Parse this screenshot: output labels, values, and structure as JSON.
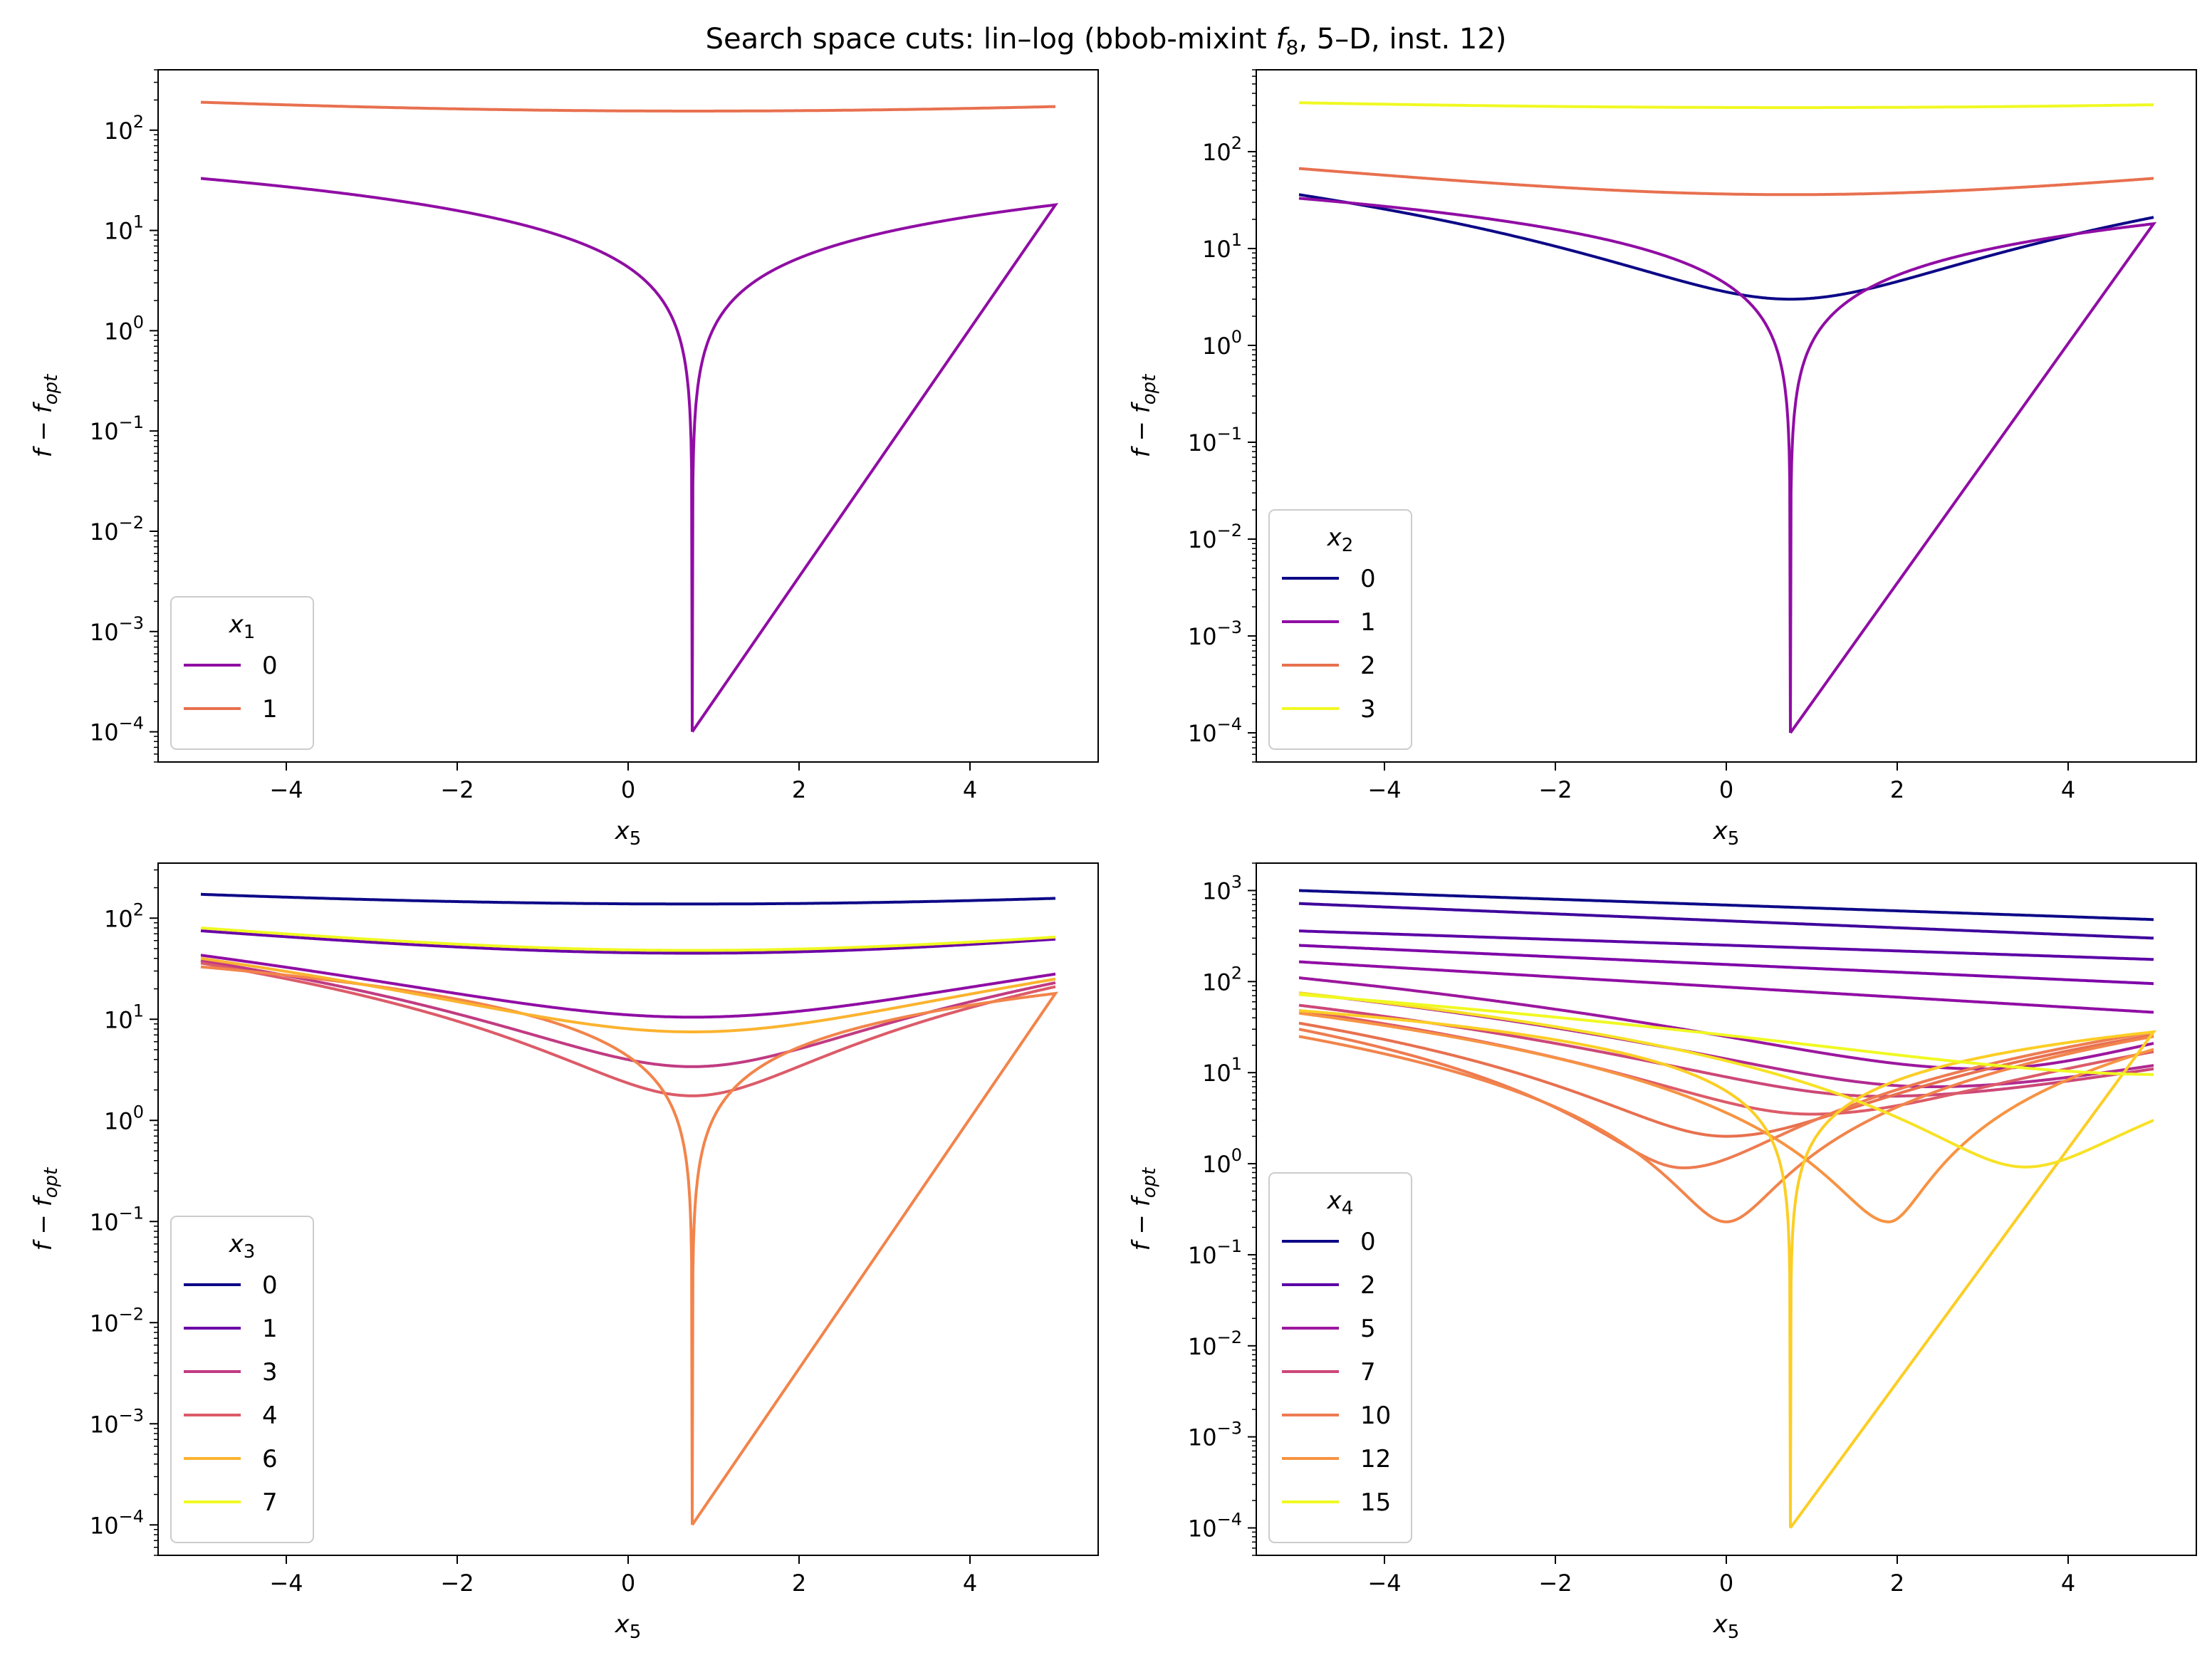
{
  "title_parts": {
    "pre": "Search space cuts: lin–log (bbob-mixint ",
    "f": "f",
    "fsub": "8",
    "post": ", 5–D, inst. 12)"
  },
  "colors": {
    "0": "#0d0887",
    "1": "#6a00a8",
    "2": "#900da4",
    "3": "#b12a90",
    "4": "#cc4778",
    "5": "#e16462",
    "6": "#f2844b",
    "7": "#fca636",
    "8": "#fcce25",
    "9": "#f0f921"
  },
  "chart_data": [
    {
      "type": "line",
      "xlabel": {
        "base": "x",
        "sub": "5"
      },
      "ylabel": {
        "base": "f − f",
        "sub": "opt"
      },
      "yscale": "log",
      "xlim": [
        -5.5,
        5.5
      ],
      "ylim": [
        5e-05,
        400
      ],
      "xticks": [
        -4,
        -2,
        0,
        2,
        4
      ],
      "yticks": [
        0.0001,
        0.001,
        0.01,
        0.1,
        1,
        10,
        100
      ],
      "legend": {
        "title": {
          "base": "x",
          "sub": "1"
        },
        "position": "lower-left"
      },
      "series": [
        {
          "name": "0",
          "color": "#900da4",
          "kind": "sqrt",
          "x0": 0.75,
          "floor": 0.0001,
          "left": 33,
          "right": 18
        },
        {
          "name": "1",
          "color": "#e8704f",
          "kind": "bowl",
          "x0": 0.75,
          "min": 155,
          "left": 190,
          "right": 172
        }
      ]
    },
    {
      "type": "line",
      "xlabel": {
        "base": "x",
        "sub": "5"
      },
      "ylabel": {
        "base": "f − f",
        "sub": "opt"
      },
      "yscale": "log",
      "xlim": [
        -5.5,
        5.5
      ],
      "ylim": [
        5e-05,
        700
      ],
      "xticks": [
        -4,
        -2,
        0,
        2,
        4
      ],
      "yticks": [
        0.0001,
        0.001,
        0.01,
        0.1,
        1,
        10,
        100
      ],
      "legend": {
        "title": {
          "base": "x",
          "sub": "2"
        },
        "position": "lower-left"
      },
      "series": [
        {
          "name": "0",
          "color": "#0d0887",
          "kind": "bowl",
          "x0": 0.75,
          "min": 3,
          "left": 36,
          "right": 21
        },
        {
          "name": "1",
          "color": "#900da4",
          "kind": "sqrt",
          "x0": 0.75,
          "floor": 0.0001,
          "left": 33,
          "right": 18
        },
        {
          "name": "2",
          "color": "#e8704f",
          "kind": "bowl",
          "x0": 0.75,
          "min": 36,
          "left": 67,
          "right": 53
        },
        {
          "name": "3",
          "color": "#f0f921",
          "kind": "bowl",
          "x0": 0.75,
          "min": 285,
          "left": 320,
          "right": 305
        }
      ]
    },
    {
      "type": "line",
      "xlabel": {
        "base": "x",
        "sub": "5"
      },
      "ylabel": {
        "base": "f − f",
        "sub": "opt"
      },
      "yscale": "log",
      "xlim": [
        -5.5,
        5.5
      ],
      "ylim": [
        5e-05,
        350
      ],
      "xticks": [
        -4,
        -2,
        0,
        2,
        4
      ],
      "yticks": [
        0.0001,
        0.001,
        0.01,
        0.1,
        1,
        10,
        100
      ],
      "legend": {
        "title": {
          "base": "x",
          "sub": "3"
        },
        "position": "lower-left"
      },
      "series": [
        {
          "name": "0",
          "color": "#0d0887",
          "kind": "bowl",
          "x0": 0.75,
          "min": 138,
          "left": 172,
          "right": 157
        },
        {
          "name": "1",
          "color": "#6a00a8",
          "kind": "bowl",
          "x0": 0.75,
          "min": 45,
          "left": 75,
          "right": 62
        },
        {
          "name": "",
          "color": "#900da4",
          "kind": "bowl",
          "x0": 0.75,
          "min": 10.5,
          "left": 43,
          "right": 28
        },
        {
          "name": "3",
          "color": "#c13b82",
          "kind": "bowl",
          "x0": 0.75,
          "min": 3.4,
          "left": 38,
          "right": 23
        },
        {
          "name": "4",
          "color": "#dc5b69",
          "kind": "bowl",
          "x0": 0.75,
          "min": 1.75,
          "left": 36,
          "right": 21
        },
        {
          "name": "",
          "color": "#f2844b",
          "kind": "sqrt",
          "x0": 0.75,
          "floor": 0.0001,
          "left": 33,
          "right": 18
        },
        {
          "name": "6",
          "color": "#fbb32f",
          "kind": "bowl",
          "x0": 0.75,
          "min": 7.5,
          "left": 40,
          "right": 25
        },
        {
          "name": "7",
          "color": "#f0f921",
          "kind": "bowl",
          "x0": 0.75,
          "min": 48,
          "left": 80,
          "right": 65
        }
      ]
    },
    {
      "type": "line",
      "xlabel": {
        "base": "x",
        "sub": "5"
      },
      "ylabel": {
        "base": "f − f",
        "sub": "opt"
      },
      "yscale": "log",
      "xlim": [
        -5.5,
        5.5
      ],
      "ylim": [
        5e-05,
        2000
      ],
      "xticks": [
        -4,
        -2,
        0,
        2,
        4
      ],
      "yticks": [
        0.0001,
        0.001,
        0.01,
        0.1,
        1,
        10,
        100,
        1000
      ],
      "legend": {
        "title": {
          "base": "x",
          "sub": "4"
        },
        "position": "lower-left"
      },
      "series": [
        {
          "name": "0",
          "color": "#0d0887",
          "kind": "mono",
          "left": 1000,
          "right": 480
        },
        {
          "name": "",
          "color": "#3e049c",
          "kind": "mono",
          "left": 720,
          "right": 300
        },
        {
          "name": "2",
          "color": "#5c01a6",
          "kind": "mono",
          "left": 360,
          "right": 175
        },
        {
          "name": "",
          "color": "#7e03a8",
          "kind": "mono",
          "left": 250,
          "right": 95
        },
        {
          "name": "",
          "color": "#900da4",
          "kind": "mono",
          "left": 165,
          "right": 46
        },
        {
          "name": "5",
          "color": "#9c179e",
          "kind": "bowl",
          "x0": 3.0,
          "min": 11,
          "left": 110,
          "right": 21
        },
        {
          "name": "",
          "color": "#b12a90",
          "kind": "bowl",
          "x0": 2.4,
          "min": 7,
          "left": 75,
          "right": 12
        },
        {
          "name": "7",
          "color": "#cc4778",
          "kind": "bowl",
          "x0": 1.8,
          "min": 5.5,
          "left": 55,
          "right": 11
        },
        {
          "name": "",
          "color": "#dc5b69",
          "kind": "bowl",
          "x0": 1.0,
          "min": 3.5,
          "left": 48,
          "right": 17
        },
        {
          "name": "",
          "color": "#e8704f",
          "kind": "bowl",
          "x0": 0.0,
          "min": 2.0,
          "left": 35,
          "right": 26
        },
        {
          "name": "10",
          "color": "#ee7b51",
          "kind": "bowl",
          "x0": -0.5,
          "min": 0.9,
          "left": 30,
          "right": 28
        },
        {
          "name": "",
          "color": "#f2844b",
          "kind": "bowl",
          "x0": 0.0,
          "min": 0.23,
          "left": 25,
          "right": 25
        },
        {
          "name": "12",
          "color": "#f79342",
          "kind": "bowl",
          "x0": 1.9,
          "min": 0.23,
          "left": 45,
          "right": 18
        },
        {
          "name": "",
          "color": "#fcce25",
          "kind": "sqrt",
          "x0": 0.75,
          "floor": 0.0001,
          "left": 48,
          "right": 28
        },
        {
          "name": "",
          "color": "#f7e225",
          "kind": "bowl",
          "x0": 3.5,
          "min": 0.92,
          "left": 75,
          "right": 3
        },
        {
          "name": "15",
          "color": "#f0f921",
          "kind": "bowl",
          "x0": 5.2,
          "min": 9.5,
          "left": 72,
          "right": 9.8
        }
      ]
    }
  ]
}
